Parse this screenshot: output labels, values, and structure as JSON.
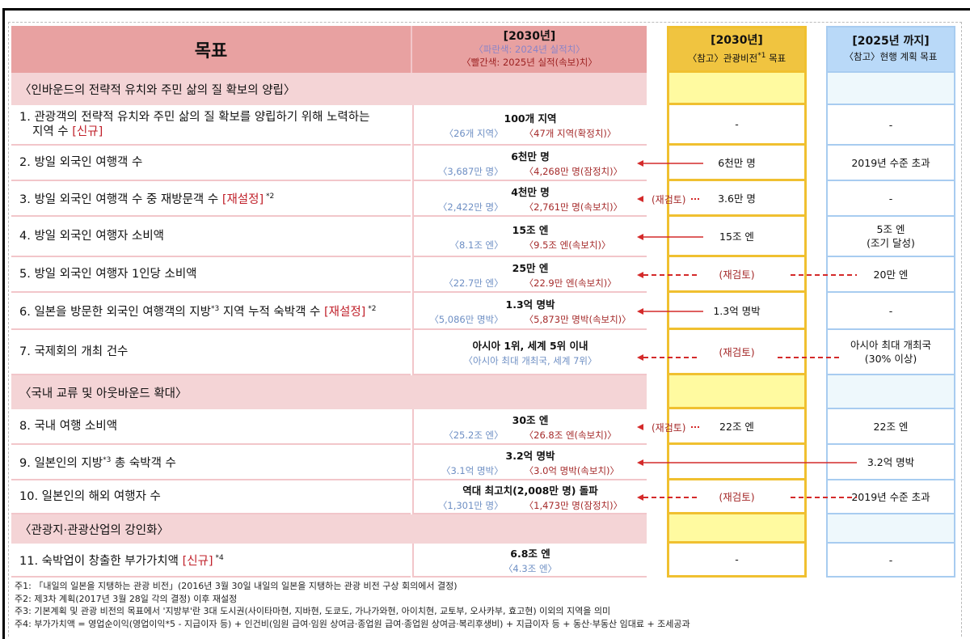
{
  "header": {
    "goal": "목표",
    "target": {
      "year": "[2030년]",
      "blue_legend": "〈파란색: 2024년 실적치〉",
      "red_legend": "〈빨간색: 2025년 실적(속보)치〉"
    },
    "vision": {
      "year": "[2030년]",
      "sub": "〈참고〉관광비전",
      "sup": "*1",
      "sub2": " 목표"
    },
    "current": {
      "year": "[2025년 까지]",
      "sub": "〈참고〉현행 계획 목표"
    }
  },
  "sections": [
    "〈인바운드의 전략적 유치와 주민 삶의 질 확보의 양립〉",
    "〈국내 교류 및 아웃바운드 확대〉",
    "〈관광지·관광산업의  강인화〉"
  ],
  "rows": [
    {
      "goal": "1. 관광객의 전략적 유치와 주민 삶의 질 확보를 양립하기 위해 노력하는",
      "goal2": "지역 수 ",
      "tag": "[신규]",
      "note": "",
      "target": "100개 지역",
      "blue": "〈26개 지역〉",
      "red": "〈47개 지역(확정치)〉",
      "vision": "-",
      "current": "-"
    },
    {
      "goal": "2. 방일 외국인 여행객 수",
      "target": "6천만 명",
      "blue": "〈3,687만 명〉",
      "red": "〈4,268만 명(잠정치)〉",
      "vision": "6천만 명",
      "current": "2019년 수준 초과"
    },
    {
      "goal": "3. 방일 외국인 여행객 수 중 재방문객 수 ",
      "tag": "[재설정]",
      "note": " *2",
      "target": "4천만 명",
      "blue": "〈2,422만 명〉",
      "red": "〈2,761만 명(속보치)〉",
      "vision": "3.6만 명",
      "current": "-"
    },
    {
      "goal": "4. 방일 외국인 여행자 소비액",
      "target": "15조 엔",
      "blue": "〈8.1조 엔〉",
      "red": "〈9.5조 엔(속보치)〉",
      "vision": "15조 엔",
      "current": "5조 엔",
      "current2": "(조기 달성)"
    },
    {
      "goal": "5. 방일 외국인 여행자 1인당 소비액",
      "target": "25만 엔",
      "blue": "〈22.7만 엔〉",
      "red": "〈22.9만 엔(속보치)〉",
      "vision": "(재검토)",
      "current": "20만 엔"
    },
    {
      "goal": "6. 일본을 방문한 외국인 여행객의 지방",
      "goal_sup": "*3",
      "goal_tail": " 지역 누적 숙박객 수 ",
      "tag": "[재설정]",
      "note": " *2",
      "target": "1.3억 명박",
      "blue": "〈5,086만 명박〉",
      "red": "〈5,873만 명박(속보치)〉",
      "vision": "1.3억 명박",
      "current": "-"
    },
    {
      "goal": "7. 국제회의 개최 건수",
      "target": "아시아 1위, 세계 5위 이내",
      "blue": "〈아시아 최대 개최국, 세계 7위〉",
      "vision": "(재검토)",
      "current": "아시아 최대 개최국",
      "current2": "(30% 이상)"
    },
    {
      "goal": "8. 국내 여행 소비액",
      "target": "30조 엔",
      "blue": "〈25.2조 엔〉",
      "red": "〈26.8조 엔(속보치)〉",
      "vision": "22조 엔",
      "current": "22조 엔"
    },
    {
      "goal": "9. 일본인의 지방",
      "goal_sup": "*3",
      "goal_tail": " 총 숙박객 수",
      "target": "3.2억 명박",
      "blue": "〈3.1억 명박〉",
      "red": "〈3.0억 명박(속보치)〉",
      "vision": "",
      "current": "3.2억 명박"
    },
    {
      "goal": "10. 일본인의 해외 여행자 수",
      "target": "역대 최고치(2,008만 명) 돌파",
      "blue": "〈1,301만 명〉",
      "red": "〈1,473만 명(잠정치)〉",
      "vision": "(재검토)",
      "current": "2019년 수준 초과"
    },
    {
      "goal": "11. 숙박업이 창출한 부가가치액 ",
      "tag": "[신규]",
      "note": " *4",
      "target": "6.8조 엔",
      "blue": "〈4.3조 엔〉",
      "vision": "-",
      "current": "-"
    }
  ],
  "arrows": [
    {
      "row": 2,
      "style": "solid",
      "from": "vision"
    },
    {
      "row": 3,
      "style": "short",
      "label": "(재검토)"
    },
    {
      "row": 4,
      "style": "solid",
      "from": "vision"
    },
    {
      "row": 5,
      "style": "dashed",
      "from": "current"
    },
    {
      "row": 6,
      "style": "solid",
      "from": "vision"
    },
    {
      "row": 7,
      "style": "dashed",
      "from": "current"
    },
    {
      "row": 8,
      "style": "short",
      "label": "(재검토)"
    },
    {
      "row": 9,
      "style": "solid",
      "from": "current"
    },
    {
      "row": 10,
      "style": "dashed",
      "from": "current"
    }
  ],
  "colors": {
    "arrow": "#d42a2a",
    "blue_text": "#6e8fc4",
    "red_text": "#a52a2a"
  },
  "notes": [
    "주1: 「내일의 일본을 지탱하는 관광 비전」(2016년 3월 30일 내일의 일본을 지탱하는 관광 비전 구상 회의에서 결정)",
    "주2: 제3차 계획(2017년 3월 28일 각의 결정) 이후 재설정",
    "주3: 기본계획 및 관광 비전의 목표에서 '지방부'란 3대 도시권(사이타마현, 지바현, 도쿄도, 가나가와현, 아이치현, 교토부, 오사카부, 효고현) 이외의 지역을 의미",
    "주4: 부가가치액 = 영업순이익(영업이익*5  -  지급이자 등) + 인건비(임원 급여·임원 상여금·종업원 급여·종업원 상여금·복리후생비) + 지급이자 등 + 동산·부동산 임대료 + 조세공과"
  ]
}
